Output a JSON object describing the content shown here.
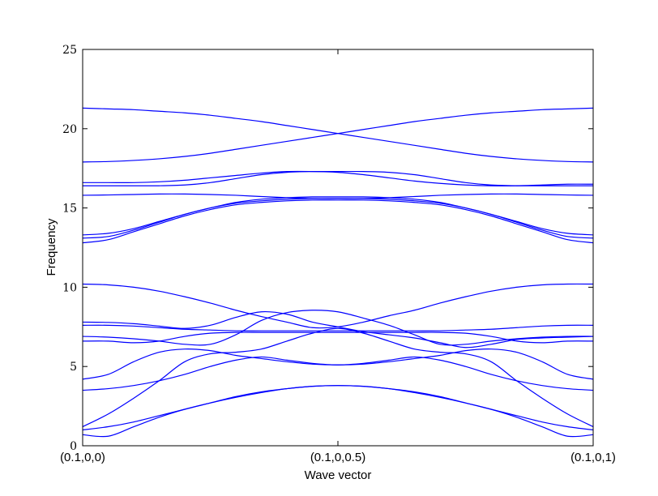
{
  "chart_data": {
    "type": "line",
    "title": "",
    "xlabel": "Wave vector",
    "ylabel": "Frequency",
    "x_ticks": [
      "(0.1,0,0)",
      "(0.1,0,0.5)",
      "(0.1,0,1)"
    ],
    "y_ticks": [
      "0",
      "5",
      "10",
      "15",
      "20",
      "25"
    ],
    "xlim": [
      0,
      1
    ],
    "ylim": [
      0,
      25
    ],
    "grid": false,
    "line_color": "#0000ff",
    "x": [
      0,
      0.05,
      0.1,
      0.15,
      0.2,
      0.25,
      0.3,
      0.35,
      0.4,
      0.45,
      0.5,
      0.55,
      0.6,
      0.65,
      0.7,
      0.75,
      0.8,
      0.85,
      0.9,
      0.95,
      1
    ],
    "series": [
      {
        "values": [
          0.7,
          0.6,
          1.2,
          1.8,
          2.3,
          2.7,
          3.1,
          3.4,
          3.6,
          3.75,
          3.8,
          3.75,
          3.6,
          3.4,
          3.1,
          2.7,
          2.3,
          1.8,
          1.2,
          0.6,
          0.7
        ]
      },
      {
        "values": [
          1.0,
          1.2,
          1.5,
          1.9,
          2.3,
          2.7,
          3.05,
          3.35,
          3.6,
          3.75,
          3.8,
          3.75,
          3.6,
          3.35,
          3.05,
          2.7,
          2.3,
          1.9,
          1.5,
          1.2,
          1.0
        ]
      },
      {
        "values": [
          1.2,
          2.0,
          3.0,
          4.1,
          5.3,
          5.8,
          5.9,
          6.1,
          6.6,
          7.1,
          7.4,
          7.1,
          6.6,
          6.1,
          5.9,
          5.8,
          5.3,
          4.1,
          3.0,
          2.0,
          1.2
        ]
      },
      {
        "values": [
          3.5,
          3.6,
          3.8,
          4.1,
          4.5,
          5.0,
          5.4,
          5.6,
          5.4,
          5.2,
          5.1,
          5.2,
          5.4,
          5.6,
          5.4,
          5.0,
          4.5,
          4.1,
          3.8,
          3.6,
          3.5
        ]
      },
      {
        "values": [
          4.2,
          4.5,
          5.3,
          5.9,
          6.1,
          6.0,
          5.7,
          5.5,
          5.3,
          5.15,
          5.1,
          5.15,
          5.3,
          5.5,
          5.7,
          6.0,
          6.1,
          5.9,
          5.3,
          4.5,
          4.2
        ]
      },
      {
        "values": [
          6.6,
          6.6,
          6.5,
          6.6,
          6.9,
          7.1,
          7.15,
          7.15,
          7.15,
          7.15,
          7.15,
          7.15,
          7.15,
          7.15,
          7.15,
          7.1,
          6.9,
          6.6,
          6.5,
          6.6,
          6.6
        ]
      },
      {
        "values": [
          6.9,
          6.85,
          6.75,
          6.6,
          6.4,
          6.4,
          7.0,
          7.9,
          8.4,
          8.55,
          8.45,
          8.05,
          7.6,
          7.0,
          6.4,
          6.4,
          6.6,
          6.75,
          6.85,
          6.9,
          6.9
        ]
      },
      {
        "values": [
          7.6,
          7.6,
          7.55,
          7.45,
          7.35,
          7.3,
          7.25,
          7.25,
          7.25,
          7.25,
          7.25,
          7.25,
          7.25,
          7.25,
          7.25,
          7.3,
          7.35,
          7.45,
          7.55,
          7.6,
          7.6
        ]
      },
      {
        "values": [
          7.8,
          7.78,
          7.7,
          7.55,
          7.4,
          7.6,
          8.1,
          8.45,
          8.3,
          7.8,
          7.5,
          7.2,
          7.0,
          6.8,
          6.5,
          6.2,
          6.4,
          6.7,
          6.8,
          6.85,
          6.9
        ]
      },
      {
        "values": [
          10.2,
          10.15,
          10.0,
          9.75,
          9.4,
          9.0,
          8.55,
          8.15,
          7.8,
          7.45,
          7.5,
          7.8,
          8.2,
          8.55,
          9.0,
          9.4,
          9.75,
          10.0,
          10.15,
          10.2,
          10.2
        ]
      },
      {
        "values": [
          12.8,
          13.0,
          13.5,
          14.0,
          14.5,
          14.9,
          15.2,
          15.35,
          15.45,
          15.5,
          15.5,
          15.5,
          15.45,
          15.35,
          15.2,
          14.9,
          14.5,
          14.0,
          13.5,
          13.0,
          12.8
        ]
      },
      {
        "values": [
          13.1,
          13.2,
          13.6,
          14.1,
          14.6,
          15.0,
          15.3,
          15.45,
          15.55,
          15.6,
          15.6,
          15.6,
          15.55,
          15.45,
          15.3,
          15.0,
          14.6,
          14.1,
          13.6,
          13.2,
          13.1
        ]
      },
      {
        "values": [
          13.3,
          13.4,
          13.7,
          14.15,
          14.6,
          15.0,
          15.35,
          15.55,
          15.65,
          15.7,
          15.7,
          15.7,
          15.65,
          15.55,
          15.35,
          15.0,
          14.6,
          14.15,
          13.7,
          13.4,
          13.3
        ]
      },
      {
        "values": [
          15.8,
          15.82,
          15.85,
          15.88,
          15.88,
          15.85,
          15.8,
          15.72,
          15.65,
          15.6,
          15.6,
          15.6,
          15.65,
          15.72,
          15.8,
          15.85,
          15.88,
          15.88,
          15.85,
          15.82,
          15.8
        ]
      },
      {
        "values": [
          16.4,
          16.4,
          16.4,
          16.4,
          16.45,
          16.6,
          16.85,
          17.1,
          17.25,
          17.3,
          17.3,
          17.3,
          17.25,
          17.1,
          16.85,
          16.6,
          16.45,
          16.4,
          16.4,
          16.4,
          16.4
        ]
      },
      {
        "values": [
          16.6,
          16.6,
          16.6,
          16.65,
          16.75,
          16.9,
          17.05,
          17.2,
          17.3,
          17.3,
          17.25,
          17.1,
          16.9,
          16.7,
          16.55,
          16.45,
          16.4,
          16.4,
          16.45,
          16.5,
          16.5
        ]
      },
      {
        "values": [
          17.9,
          17.93,
          18.0,
          18.1,
          18.25,
          18.45,
          18.7,
          18.95,
          19.2,
          19.45,
          19.7,
          19.95,
          20.2,
          20.45,
          20.65,
          20.85,
          21.0,
          21.1,
          21.2,
          21.25,
          21.3
        ]
      },
      {
        "values": [
          21.3,
          21.25,
          21.2,
          21.1,
          21.0,
          20.85,
          20.65,
          20.45,
          20.2,
          19.95,
          19.7,
          19.45,
          19.2,
          18.95,
          18.7,
          18.45,
          18.25,
          18.1,
          18.0,
          17.93,
          17.9
        ]
      }
    ]
  }
}
